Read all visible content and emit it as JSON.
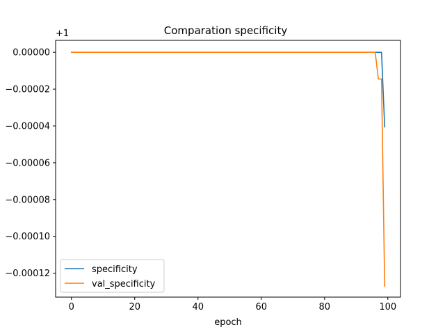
{
  "chart_data": {
    "type": "line",
    "title": "Comparation specificity",
    "xlabel": "epoch",
    "ylabel": "",
    "offset_label": "+1",
    "xlim": [
      -5,
      104
    ],
    "ylim": [
      -0.000133,
      6.5e-06
    ],
    "xticks": [
      0,
      20,
      40,
      60,
      80,
      100
    ],
    "xtick_labels": [
      "0",
      "20",
      "40",
      "60",
      "80",
      "100"
    ],
    "yticks": [
      0,
      -2e-05,
      -4e-05,
      -6e-05,
      -8e-05,
      -0.0001,
      -0.00012
    ],
    "ytick_labels": [
      "0.00000",
      "−0.00002",
      "−0.00004",
      "−0.00006",
      "−0.00008",
      "−0.00010",
      "−0.00012"
    ],
    "grid": false,
    "legend_position": "lower-left",
    "series": [
      {
        "name": "specificity",
        "color": "#1f77b4",
        "points": [
          [
            0,
            0
          ],
          [
            97,
            0
          ],
          [
            98,
            0
          ],
          [
            99,
            -4.05e-05
          ]
        ]
      },
      {
        "name": "val_specificity",
        "color": "#ff7f0e",
        "points": [
          [
            0,
            0
          ],
          [
            96,
            0
          ],
          [
            97,
            -1.45e-05
          ],
          [
            98,
            -1.45e-05
          ],
          [
            99,
            -0.000127
          ]
        ]
      }
    ]
  }
}
